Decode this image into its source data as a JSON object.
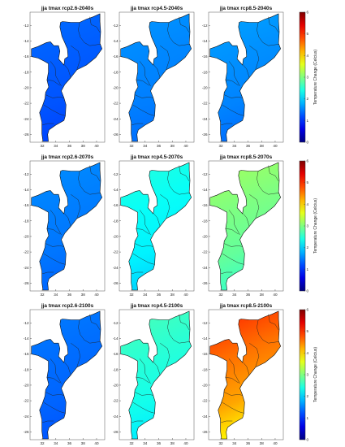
{
  "figure": {
    "panels": [
      {
        "title": "jja tmax rcp2.6-2040s",
        "level": 1.3,
        "gradient": 0.15
      },
      {
        "title": "jja tmax rcp4.5-2040s",
        "level": 1.55,
        "gradient": 0.15
      },
      {
        "title": "jja tmax rcp8.5-2040s",
        "level": 1.6,
        "gradient": 0.2
      },
      {
        "title": "jja tmax rcp2.6-2070s",
        "level": 1.5,
        "gradient": 0.15
      },
      {
        "title": "jja tmax rcp4.5-2070s",
        "level": 2.3,
        "gradient": 0.3
      },
      {
        "title": "jja tmax rcp8.5-2070s",
        "level": 3.0,
        "gradient": 0.4
      },
      {
        "title": "jja tmax rcp2.6-2100s",
        "level": 1.4,
        "gradient": 0.15
      },
      {
        "title": "jja tmax rcp4.5-2100s",
        "level": 2.5,
        "gradient": 0.35
      },
      {
        "title": "jja tmax rcp8.5-2100s",
        "level": 4.6,
        "gradient": 0.8
      }
    ],
    "y_ticks": [
      "-12",
      "-14",
      "-16",
      "-18",
      "-20",
      "-22",
      "-24",
      "-26"
    ],
    "x_ticks": [
      "32",
      "34",
      "36",
      "38",
      "40"
    ],
    "colorbar": {
      "label": "Temperature Change (Celcius)",
      "min": 0,
      "max": 6,
      "ticks": [
        "0",
        "1",
        "2",
        "3",
        "4",
        "5",
        "6"
      ]
    },
    "colormap": "jet"
  }
}
